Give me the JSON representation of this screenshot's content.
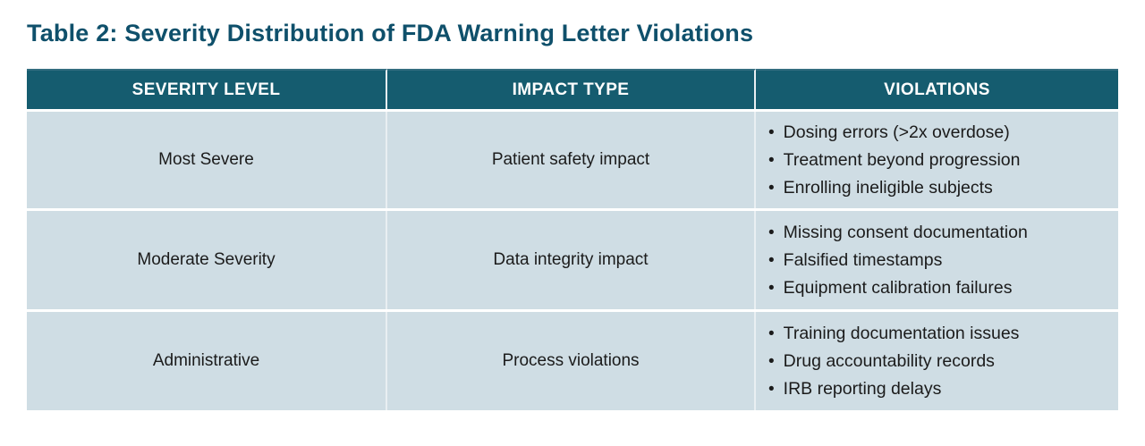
{
  "page": {
    "title": "Table 2: Severity Distribution of FDA Warning Letter Violations"
  },
  "colors": {
    "title_text": "#0f506b",
    "header_bg": "#155c6f",
    "header_text": "#ffffff",
    "row_bg": "#cfdde4",
    "body_text": "#1b1b1b",
    "divider": "#e9eff2",
    "page_bg": "#ffffff"
  },
  "icons": {
    "bullet": "•"
  },
  "table": {
    "columns": [
      "SEVERITY LEVEL",
      "IMPACT TYPE",
      "VIOLATIONS"
    ],
    "rows": [
      {
        "severity_level": "Most Severe",
        "impact_type": "Patient safety impact",
        "violations": [
          "Dosing errors (>2x overdose)",
          "Treatment beyond progression",
          "Enrolling ineligible subjects"
        ]
      },
      {
        "severity_level": "Moderate Severity",
        "impact_type": "Data integrity impact",
        "violations": [
          "Missing consent documentation",
          "Falsified timestamps",
          "Equipment calibration failures"
        ]
      },
      {
        "severity_level": "Administrative",
        "impact_type": "Process violations",
        "violations": [
          "Training documentation issues",
          "Drug accountability records",
          "IRB reporting delays"
        ]
      }
    ]
  }
}
